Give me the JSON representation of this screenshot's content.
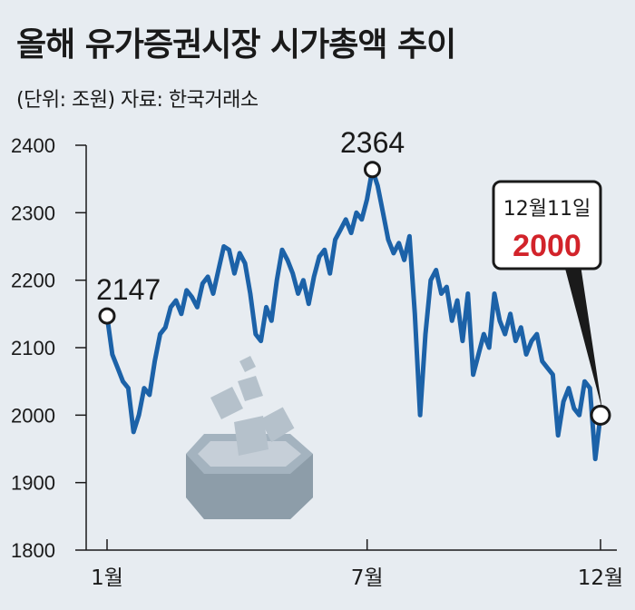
{
  "title": "올해 유가증권시장 시가총액 추이",
  "subtitle": "(단위: 조원) 자료: 한국거래소",
  "chart_data": {
    "type": "line",
    "title": "올해 유가증권시장 시가총액 추이",
    "unit": "조원",
    "source": "한국거래소",
    "ylim": [
      1800,
      2400
    ],
    "yticks": [
      "2400",
      "2300",
      "2200",
      "2100",
      "2000",
      "1900",
      "1800"
    ],
    "xticks": [
      "1월",
      "7월",
      "12월"
    ],
    "grid": false,
    "legend": "none",
    "series_color": "#1c62a8",
    "marker_color": "#1a1a1a",
    "highlight_color": "#d2232a",
    "series": [
      {
        "values": [
          2147,
          2090,
          2070,
          2050,
          2040,
          1975,
          2000,
          2040,
          2030,
          2080,
          2120,
          2130,
          2160,
          2170,
          2150,
          2185,
          2175,
          2160,
          2195,
          2205,
          2180,
          2215,
          2250,
          2245,
          2210,
          2240,
          2225,
          2180,
          2120,
          2110,
          2160,
          2140,
          2200,
          2245,
          2230,
          2210,
          2180,
          2200,
          2165,
          2205,
          2235,
          2245,
          2210,
          2260,
          2275,
          2290,
          2270,
          2300,
          2290,
          2320,
          2364,
          2340,
          2300,
          2260,
          2240,
          2255,
          2230,
          2265,
          2150,
          2000,
          2120,
          2200,
          2215,
          2180,
          2190,
          2140,
          2170,
          2110,
          2180,
          2060,
          2090,
          2120,
          2100,
          2180,
          2140,
          2120,
          2150,
          2110,
          2130,
          2090,
          2110,
          2120,
          2080,
          2070,
          2060,
          1970,
          2020,
          2040,
          2010,
          2000,
          2050,
          2040,
          1935,
          2000
        ]
      }
    ],
    "annotations": [
      {
        "label": "2147",
        "value": 2147
      },
      {
        "label": "2364",
        "value": 2364
      },
      {
        "date": "12월11일",
        "label": "2000",
        "value": 2000
      }
    ]
  }
}
